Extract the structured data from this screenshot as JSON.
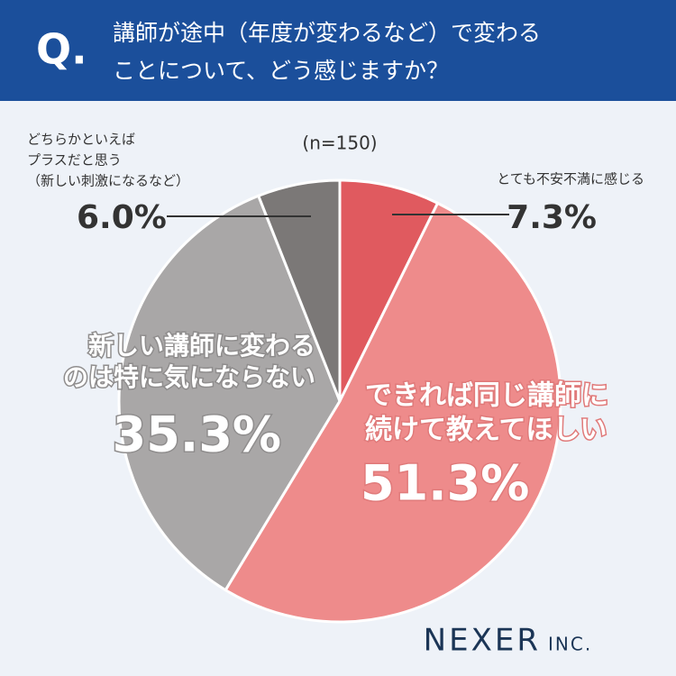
{
  "chart_data": {
    "type": "pie",
    "q_label": "Q.",
    "title": [
      "講師が途中（年度が変わるなど）で変わる",
      "ことについて、どう感じますか？"
    ],
    "note": "(n=150)",
    "categories": [
      [
        "とても不安不満に感じる"
      ],
      [
        "できれば同じ講師に",
        "続けて教えてほしい"
      ],
      [
        "新しい講師に変わる",
        "のは特に気にならない"
      ],
      [
        "どちらかといえば",
        "プラスだと思う",
        "（新しい刺激になるなど）"
      ]
    ],
    "values": [
      7.3,
      51.3,
      35.3,
      6.0
    ],
    "value_labels": [
      "7.3%",
      "51.3%",
      "35.3%",
      "6.0%"
    ],
    "colors": [
      "#e05a5f",
      "#ee8b8b",
      "#a9a7a7",
      "#7b7877"
    ]
  },
  "brand": {
    "name": "NEXER",
    "suffix": "INC."
  }
}
